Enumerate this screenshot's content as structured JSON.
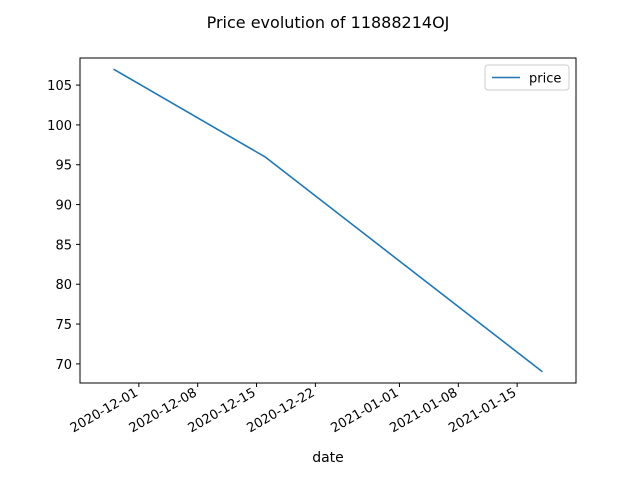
{
  "chart_data": {
    "type": "line",
    "title": "Price evolution of 11888214OJ",
    "xlabel": "date",
    "ylabel": "",
    "x_type": "date",
    "xlim": [
      "2020-11-24",
      "2021-01-22"
    ],
    "ylim": [
      67.6,
      108.4
    ],
    "x_ticks": [
      "2020-12-01",
      "2020-12-08",
      "2020-12-15",
      "2020-12-22",
      "2021-01-01",
      "2021-01-08",
      "2021-01-15"
    ],
    "y_ticks": [
      70,
      75,
      80,
      85,
      90,
      95,
      100,
      105
    ],
    "grid": false,
    "legend": {
      "position": "top-right"
    },
    "series": [
      {
        "name": "price",
        "color": "#1f77b4",
        "points": [
          {
            "x": "2020-11-28",
            "y": 107
          },
          {
            "x": "2020-12-16",
            "y": 96
          },
          {
            "x": "2021-01-18",
            "y": 69
          }
        ]
      }
    ]
  }
}
